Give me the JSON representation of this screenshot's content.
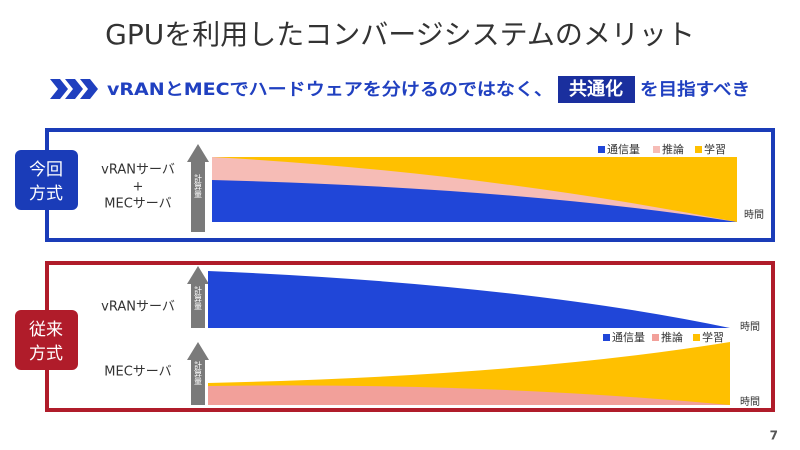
{
  "title": "GPUを利用したコンバージシステムのメリット",
  "subtitle": {
    "before": "vRANとMECでハードウェアを分けるのではなく、",
    "highlight": "共通化",
    "after": "を目指すべき"
  },
  "current": {
    "badge": [
      "今回",
      "方式"
    ],
    "server_label": [
      "vRANサーバ",
      "+",
      "MECサーバ"
    ],
    "axis_label": "計算量",
    "time_label": "時間",
    "legend": [
      "通信量",
      "推論",
      "学習"
    ]
  },
  "conventional": {
    "badge": [
      "従来",
      "方式"
    ],
    "vran": {
      "label": "vRANサーバ",
      "axis_label": "計算量",
      "time_label": "時間"
    },
    "legend": [
      "通信量",
      "推論",
      "学習"
    ],
    "mec": {
      "label": "MECサーバ",
      "axis_label": "計算量",
      "time_label": "時間"
    }
  },
  "page_number": "7"
}
